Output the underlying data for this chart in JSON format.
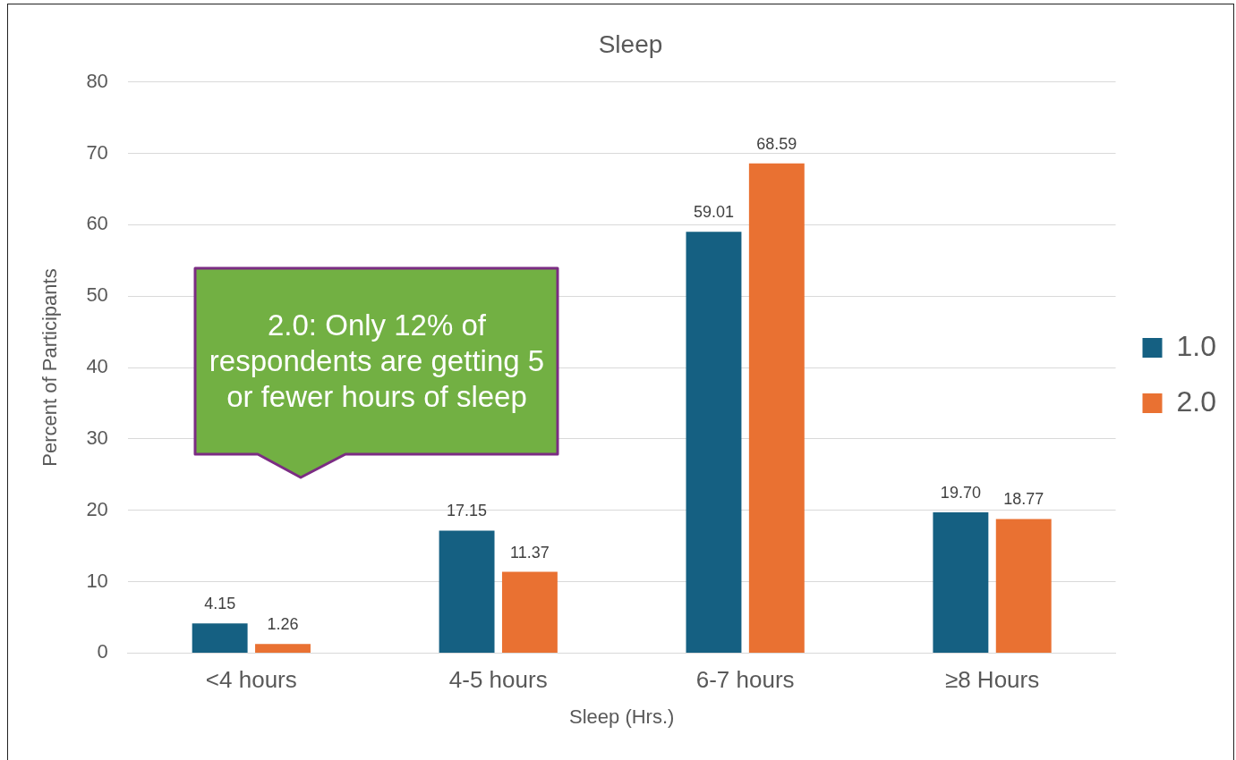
{
  "chart_data": {
    "type": "bar",
    "title": "Sleep",
    "xlabel": "Sleep (Hrs.)",
    "ylabel": "Percent of Participants",
    "categories": [
      "<4 hours",
      "4-5 hours",
      "6-7 hours",
      "≥8 Hours"
    ],
    "series": [
      {
        "name": "1.0",
        "color": "#156082",
        "values": [
          4.15,
          17.15,
          59.01,
          19.7
        ],
        "value_labels": [
          "4.15",
          "17.15",
          "59.01",
          "19.70"
        ]
      },
      {
        "name": "2.0",
        "color": "#e97132",
        "values": [
          1.26,
          11.37,
          68.59,
          18.77
        ],
        "value_labels": [
          "1.26",
          "11.37",
          "68.59",
          "18.77"
        ]
      }
    ],
    "ylim": [
      0,
      80
    ],
    "yticks": [
      0,
      10,
      20,
      30,
      40,
      50,
      60,
      70,
      80
    ],
    "grid": "y",
    "legend": "right",
    "annotations": [
      "2.0: Only 12% of respondents are getting 5 or fewer hours of sleep"
    ]
  }
}
